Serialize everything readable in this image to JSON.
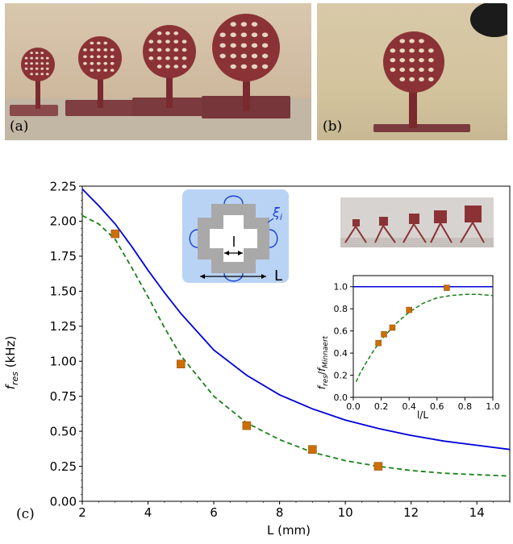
{
  "panel_labels": {
    "a": "(a)",
    "b": "(b)",
    "c": "(c)"
  },
  "colors": {
    "theory": "#0000dd",
    "model": "#1a7f1a",
    "experiment": "#cc6e00",
    "photo_bg": "#d9c7ae",
    "resin": "#7a2a2e",
    "schematic_bg": "#b9d3f5"
  },
  "chart_data": [
    {
      "type": "line",
      "xlabel": "L (mm)",
      "ylabel": "f_res (kHz)",
      "xlim": [
        2,
        15
      ],
      "ylim": [
        0,
        2.25
      ],
      "xticks": [
        "2",
        "4",
        "6",
        "8",
        "10",
        "12",
        "14"
      ],
      "yticks": [
        "0.00",
        "0.25",
        "0.50",
        "0.75",
        "1.00",
        "1.25",
        "1.50",
        "1.75",
        "2.00",
        "2.25"
      ],
      "grid": false,
      "series": [
        {
          "style": "solid",
          "x": [
            2,
            2.5,
            3,
            3.5,
            4,
            4.5,
            5,
            6,
            7,
            8,
            9,
            10,
            11,
            12,
            13,
            14,
            15
          ],
          "y": [
            2.23,
            2.11,
            1.98,
            1.82,
            1.65,
            1.49,
            1.34,
            1.08,
            0.9,
            0.76,
            0.66,
            0.58,
            0.52,
            0.47,
            0.43,
            0.4,
            0.37
          ]
        },
        {
          "style": "dashed",
          "x": [
            2,
            2.5,
            3,
            3.5,
            4,
            4.5,
            5,
            6,
            7,
            8,
            9,
            10,
            11,
            12,
            13,
            14,
            15
          ],
          "y": [
            2.04,
            1.98,
            1.87,
            1.67,
            1.46,
            1.24,
            1.04,
            0.75,
            0.56,
            0.44,
            0.35,
            0.29,
            0.25,
            0.22,
            0.2,
            0.19,
            0.18
          ]
        },
        {
          "style": "markers",
          "x": [
            3,
            5,
            7,
            9,
            11
          ],
          "y": [
            1.91,
            0.98,
            0.54,
            0.37,
            0.25
          ]
        }
      ],
      "annotations": [
        "l",
        "L",
        "ξ_i"
      ]
    },
    {
      "type": "line",
      "xlabel": "l/L",
      "ylabel": "f_res/f_Minnaert",
      "xlim": [
        0,
        1
      ],
      "ylim": [
        0,
        1.1
      ],
      "xticks": [
        "0.0",
        "0.2",
        "0.4",
        "0.6",
        "0.8",
        "1.0"
      ],
      "yticks": [
        "0.0",
        "0.2",
        "0.4",
        "0.6",
        "0.8",
        "1.0"
      ],
      "grid": false,
      "series": [
        {
          "style": "solid",
          "x": [
            0,
            1
          ],
          "y": [
            1,
            1
          ]
        },
        {
          "style": "dashed",
          "x": [
            0.02,
            0.05,
            0.1,
            0.15,
            0.2,
            0.3,
            0.4,
            0.5,
            0.6,
            0.7,
            0.8,
            0.9,
            1.0
          ],
          "y": [
            0.14,
            0.22,
            0.33,
            0.43,
            0.52,
            0.66,
            0.77,
            0.85,
            0.9,
            0.92,
            0.93,
            0.93,
            0.92
          ]
        },
        {
          "style": "markers",
          "x": [
            0.18,
            0.22,
            0.28,
            0.4,
            0.67
          ],
          "y": [
            0.49,
            0.57,
            0.63,
            0.79,
            0.99
          ]
        }
      ]
    }
  ],
  "tex": {
    "main_ylabel_main": "f",
    "main_ylabel_sub": "res",
    "main_ylabel_unit": " (kHz)",
    "inset_ylabel_a": "f",
    "inset_ylabel_asub": "res",
    "inset_ylabel_slash": "/",
    "inset_ylabel_b": "f",
    "inset_ylabel_bsub": "Minnaert",
    "xi_main": "ξ",
    "xi_sub": "i"
  }
}
